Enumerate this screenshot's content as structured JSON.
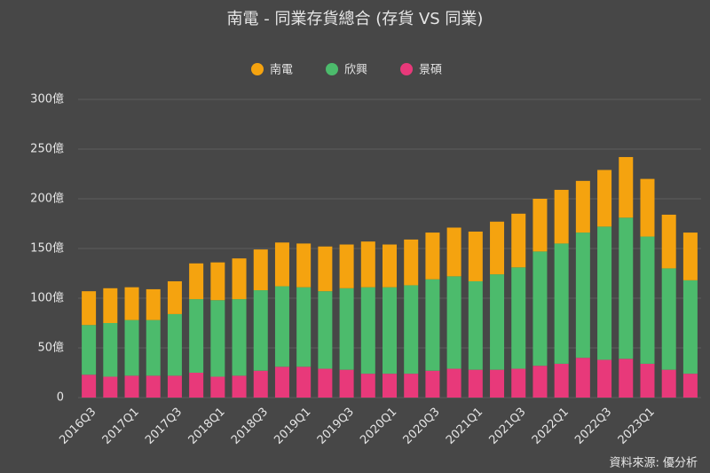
{
  "chart_data": {
    "type": "stacked_bar",
    "title": "南電 - 同業存貨總合 (存貨 VS 同業)",
    "source": "資料來源: 優分析",
    "legend": "top",
    "grid": true,
    "categories": [
      "2016Q3",
      null,
      "2017Q1",
      null,
      "2017Q3",
      null,
      "2018Q1",
      null,
      "2018Q3",
      null,
      "2019Q1",
      null,
      "2019Q3",
      null,
      "2020Q1",
      null,
      "2020Q3",
      null,
      "2021Q1",
      null,
      "2021Q3",
      null,
      "2022Q1",
      null,
      "2022Q3",
      null,
      "2023Q1",
      null,
      null
    ],
    "series": [
      {
        "name": "景碩",
        "color": "#e8397a",
        "values": [
          23,
          21,
          22,
          22,
          22,
          25,
          21,
          22,
          27,
          31,
          31,
          29,
          28,
          24,
          24,
          24,
          27,
          29,
          28,
          28,
          29,
          32,
          34,
          40,
          38,
          39,
          34,
          28,
          24
        ]
      },
      {
        "name": "欣興",
        "color": "#4cbb6c",
        "values": [
          50,
          54,
          56,
          56,
          62,
          74,
          77,
          77,
          81,
          81,
          80,
          78,
          82,
          87,
          87,
          89,
          92,
          93,
          89,
          96,
          102,
          115,
          121,
          126,
          134,
          142,
          128,
          102,
          94
        ]
      },
      {
        "name": "南電",
        "color": "#f5a30f",
        "values": [
          34,
          35,
          33,
          31,
          33,
          36,
          38,
          41,
          41,
          44,
          44,
          45,
          44,
          46,
          43,
          46,
          47,
          49,
          50,
          53,
          54,
          53,
          54,
          52,
          57,
          61,
          58,
          54,
          48
        ]
      }
    ],
    "legend_order": [
      2,
      1,
      0
    ],
    "ylim": [
      0,
      300
    ],
    "yticks": [
      0,
      {
        "value": 50,
        "label": "50億"
      },
      {
        "value": 100,
        "label": "100億"
      },
      {
        "value": 150,
        "label": "150億"
      },
      {
        "value": 200,
        "label": "200億"
      },
      {
        "value": 250,
        "label": "250億"
      },
      {
        "value": 300,
        "label": "300億"
      }
    ]
  }
}
